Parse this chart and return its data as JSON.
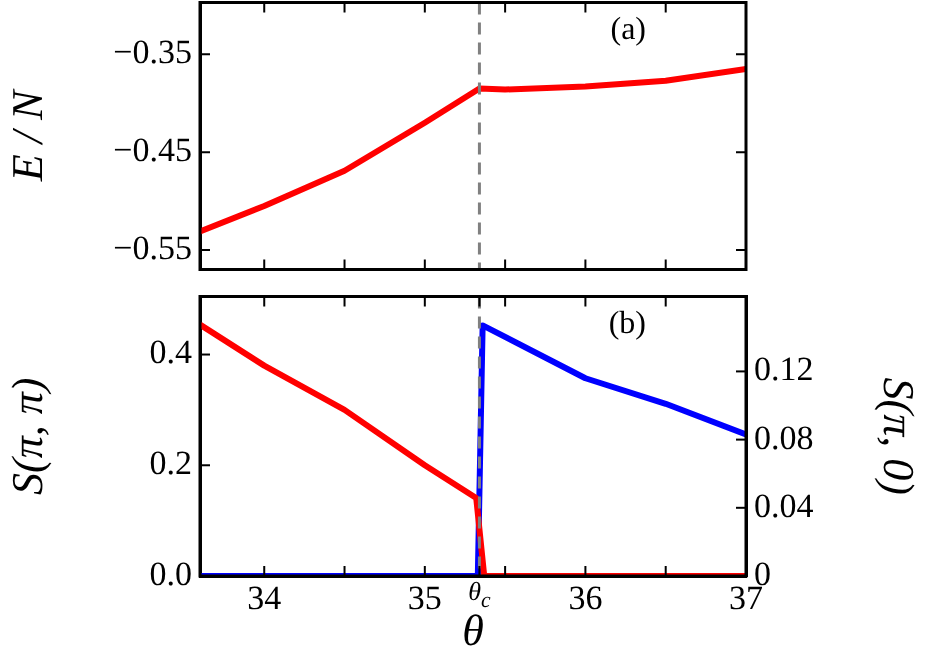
{
  "chart_data": [
    {
      "type": "line",
      "ylabel": "E / N",
      "annotations": [
        "(a)"
      ],
      "grid": false,
      "legend": false,
      "tick_labels": "y",
      "marker": "none",
      "line_style": "solid",
      "xlim": [
        33.6,
        37
      ],
      "ylim": [
        -0.57,
        -0.297
      ],
      "xticks": [
        {
          "value": 34,
          "label": null
        },
        {
          "value": 34.5,
          "label": null
        },
        {
          "value": 35,
          "label": null
        },
        {
          "value": 35.5,
          "label": null
        },
        {
          "value": 36,
          "label": null
        },
        {
          "value": 36.5,
          "label": null
        },
        {
          "value": 37,
          "label": null
        }
      ],
      "yticks": [
        {
          "value": -0.35,
          "label": "−0.35"
        },
        {
          "value": -0.45,
          "label": "−0.45"
        },
        {
          "value": -0.55,
          "label": "−0.55"
        }
      ],
      "ref_lines": [
        {
          "axis": "x",
          "value": 35.34,
          "label": null,
          "color": "#808080",
          "line_style": "dashed"
        }
      ],
      "series": [
        {
          "color": "#ff0000",
          "x": [
            33.6,
            34,
            34.5,
            35,
            35.34,
            35.5,
            36,
            36.5,
            37
          ],
          "values": [
            -0.531,
            -0.505,
            -0.469,
            -0.42,
            -0.385,
            -0.386,
            -0.383,
            -0.377,
            -0.365
          ]
        }
      ]
    },
    {
      "type": "line",
      "xlabel": "θ",
      "ylabel": "S(π, π)",
      "y2label": "S(π, 0)",
      "annotations": [
        "(b)"
      ],
      "grid": false,
      "legend": false,
      "marker": "none",
      "line_style": "solid",
      "xlim": [
        33.6,
        37
      ],
      "ylim": [
        0,
        0.505
      ],
      "y2lim": [
        0,
        0.164
      ],
      "xticks": [
        34,
        {
          "value": 34.5,
          "label": null
        },
        35,
        {
          "value": 35.34,
          "label": "θ$_{c}$"
        },
        {
          "value": 35.5,
          "label": null
        },
        36,
        {
          "value": 36.5,
          "label": null
        },
        37
      ],
      "yticks": [
        {
          "value": 0,
          "label": "0.0"
        },
        0.2,
        0.4
      ],
      "y2ticks": [
        0,
        0.04,
        0.08,
        0.12
      ],
      "ref_lines": [
        {
          "axis": "x",
          "value": 35.34,
          "label": null,
          "color": "#808080",
          "line_style": "dashed"
        }
      ],
      "series": [
        {
          "color": "#ff0000",
          "axis": "y",
          "x": [
            33.6,
            34,
            34.5,
            35,
            35.32,
            35.37,
            37
          ],
          "values": [
            0.454,
            0.38,
            0.3,
            0.2,
            0.141,
            0,
            0
          ]
        },
        {
          "color": "#0000ff",
          "axis": "y2",
          "x": [
            33.6,
            35.33,
            35.36,
            36,
            36.5,
            37
          ],
          "values": [
            0,
            0,
            0.147,
            0.116,
            0.101,
            0.083
          ]
        }
      ]
    }
  ]
}
